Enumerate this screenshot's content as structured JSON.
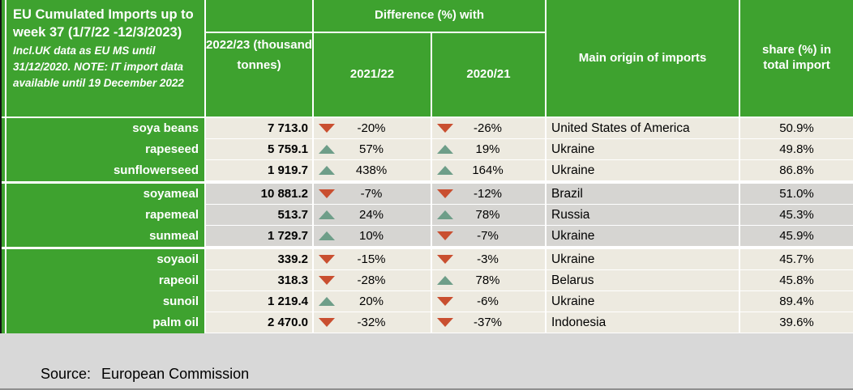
{
  "table": {
    "title": "EU Cumulated Imports up to week 37 (1/7/22 -12/3/2023)",
    "title_note": "Incl.UK data as EU MS until 31/12/2020. NOTE: IT import data available until 19 December 2022",
    "columns": {
      "value": "2022/23 (thousand tonnes)",
      "diff_group": "Difference (%) with",
      "diff1": "2021/22",
      "diff2": "2020/21",
      "origin": "Main origin of imports",
      "share": "share (%) in total import"
    },
    "rows": [
      {
        "group": 1,
        "label": "soya beans",
        "value": "7 713.0",
        "diff1": "-20%",
        "diff1_dir": "down",
        "diff2": "-26%",
        "diff2_dir": "down",
        "origin": "United States of America",
        "share": "50.9%"
      },
      {
        "group": 1,
        "label": "rapeseed",
        "value": "5 759.1",
        "diff1": "57%",
        "diff1_dir": "up",
        "diff2": "19%",
        "diff2_dir": "up",
        "origin": "Ukraine",
        "share": "49.8%"
      },
      {
        "group": 1,
        "label": "sunflowerseed",
        "value": "1 919.7",
        "diff1": "438%",
        "diff1_dir": "up",
        "diff2": "164%",
        "diff2_dir": "up",
        "origin": "Ukraine",
        "share": "86.8%"
      },
      {
        "group": 2,
        "label": "soyameal",
        "value": "10 881.2",
        "diff1": "-7%",
        "diff1_dir": "down",
        "diff2": "-12%",
        "diff2_dir": "down",
        "origin": "Brazil",
        "share": "51.0%"
      },
      {
        "group": 2,
        "label": "rapemeal",
        "value": "513.7",
        "diff1": "24%",
        "diff1_dir": "up",
        "diff2": "78%",
        "diff2_dir": "up",
        "origin": "Russia",
        "share": "45.3%"
      },
      {
        "group": 2,
        "label": "sunmeal",
        "value": "1 729.7",
        "diff1": "10%",
        "diff1_dir": "up",
        "diff2": "-7%",
        "diff2_dir": "down",
        "origin": "Ukraine",
        "share": "45.9%"
      },
      {
        "group": 3,
        "label": "soyaoil",
        "value": "339.2",
        "diff1": "-15%",
        "diff1_dir": "down",
        "diff2": "-3%",
        "diff2_dir": "down",
        "origin": "Ukraine",
        "share": "45.7%"
      },
      {
        "group": 3,
        "label": "rapeoil",
        "value": "318.3",
        "diff1": "-28%",
        "diff1_dir": "down",
        "diff2": "78%",
        "diff2_dir": "up",
        "origin": "Belarus",
        "share": "45.8%"
      },
      {
        "group": 3,
        "label": "sunoil",
        "value": "1 219.4",
        "diff1": "20%",
        "diff1_dir": "up",
        "diff2": "-6%",
        "diff2_dir": "down",
        "origin": "Ukraine",
        "share": "89.4%"
      },
      {
        "group": 3,
        "label": "palm oil",
        "value": "2 470.0",
        "diff1": "-32%",
        "diff1_dir": "down",
        "diff2": "-37%",
        "diff2_dir": "down",
        "origin": "Indonesia",
        "share": "39.6%"
      }
    ]
  },
  "footer": {
    "source_label": "Source:",
    "source_value": "European Commission"
  },
  "colors": {
    "header_green": "#3EA22F",
    "band_cream": "#EDEAE0",
    "band_gray": "#D6D5D2",
    "footer_gray": "#D8D8D8",
    "arrow_up": "#6E9E89",
    "arrow_down": "#C94F30"
  }
}
